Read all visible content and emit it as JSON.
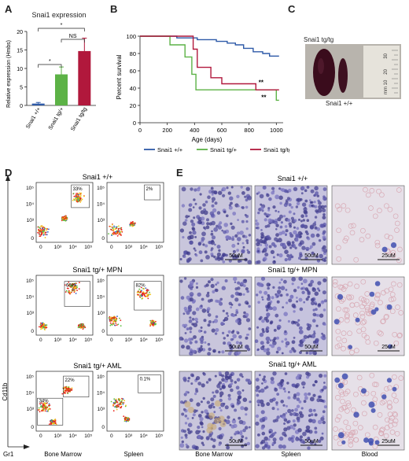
{
  "figure": {
    "panel_labels": [
      "A",
      "B",
      "C",
      "D",
      "E"
    ]
  },
  "panelA": {
    "title": "Snai1 expression",
    "ylabel": "Relative expression (Hmbs)",
    "sig_labels": [
      "*",
      "NS",
      "*"
    ]
  },
  "panelB": {
    "xlabel": "Age (days)",
    "ylabel": "Percent survival",
    "sig_labels": [
      "**",
      "**"
    ]
  },
  "panelC": {
    "label_top": "Snai1 tg/tg",
    "label_bottom": "Snai1 +/+",
    "ruler_marks": [
      "30",
      "20",
      "mm 10"
    ]
  },
  "panelD": {
    "rows": [
      {
        "title": "Snai1 +/+",
        "bm_pct": "33%",
        "sp_pct": "2%"
      },
      {
        "title": "Snai1 tg/+ MPN",
        "bm_pct": "66%",
        "sp_pct": "82%"
      },
      {
        "title": "Snai1 tg/+ AML",
        "bm_pct": "22%",
        "bm_pct2": "34%",
        "sp_pct": "0.1%"
      }
    ],
    "y_axis": "Cd11b",
    "x_axis": "Gr1",
    "col_labels": [
      "Bone Marrow",
      "Spleen"
    ],
    "tick_labels": [
      "0",
      "10³",
      "10⁴",
      "10⁵"
    ]
  },
  "panelE": {
    "rows": [
      {
        "title": "Snai1 +/+",
        "scales": [
          "50uM",
          "50uM",
          "25uM"
        ]
      },
      {
        "title": "Snai1 tg/+ MPN",
        "scales": [
          "50uM",
          "50uM",
          "25uM"
        ]
      },
      {
        "title": "Snai1 tg/+ AML",
        "scales": [
          "50uM",
          "50uM",
          "25uM"
        ]
      }
    ],
    "col_labels": [
      "Bone Marrow",
      "Spleen",
      "Blood"
    ]
  },
  "chart_data": [
    {
      "type": "bar",
      "title": "Snai1 expression",
      "ylabel": "Relative expression (Hmbs)",
      "categories": [
        "Snai1 +/+",
        "Snai1 tg/+",
        "Snai1 tg/tg"
      ],
      "values": [
        0.5,
        8.4,
        14.7
      ],
      "errors": [
        0.3,
        2.0,
        3.5
      ],
      "colors": [
        "#2e5aa8",
        "#5cb246",
        "#b1183c"
      ],
      "ylim": [
        0,
        20
      ],
      "yticks": [
        0,
        5,
        10,
        15,
        20
      ]
    },
    {
      "type": "line",
      "xlabel": "Age (days)",
      "ylabel": "Percent survival",
      "xlim": [
        0,
        1050
      ],
      "ylim": [
        0,
        100
      ],
      "xticks": [
        0,
        200,
        400,
        600,
        800,
        1000
      ],
      "yticks": [
        0,
        20,
        40,
        60,
        80,
        100
      ],
      "series": [
        {
          "name": "Snai1 +/+",
          "color": "#2e5aa8",
          "points": [
            [
              0,
              100
            ],
            [
              270,
              100
            ],
            [
              270,
              98
            ],
            [
              420,
              98
            ],
            [
              420,
              96
            ],
            [
              560,
              96
            ],
            [
              560,
              94
            ],
            [
              640,
              94
            ],
            [
              640,
              92
            ],
            [
              700,
              92
            ],
            [
              700,
              90
            ],
            [
              760,
              90
            ],
            [
              760,
              86
            ],
            [
              830,
              86
            ],
            [
              830,
              82
            ],
            [
              900,
              82
            ],
            [
              900,
              80
            ],
            [
              950,
              80
            ],
            [
              950,
              77
            ],
            [
              1020,
              77
            ]
          ]
        },
        {
          "name": "Snai1 tg/+",
          "color": "#5cb246",
          "points": [
            [
              0,
              100
            ],
            [
              220,
              100
            ],
            [
              220,
              90
            ],
            [
              330,
              90
            ],
            [
              330,
              76
            ],
            [
              380,
              76
            ],
            [
              380,
              56
            ],
            [
              410,
              56
            ],
            [
              410,
              38
            ],
            [
              1000,
              38
            ],
            [
              1000,
              26
            ],
            [
              1020,
              26
            ]
          ]
        },
        {
          "name": "Snai1 tg/tg",
          "color": "#b1183c",
          "points": [
            [
              0,
              100
            ],
            [
              390,
              100
            ],
            [
              390,
              85
            ],
            [
              420,
              85
            ],
            [
              420,
              64
            ],
            [
              520,
              64
            ],
            [
              520,
              52
            ],
            [
              600,
              52
            ],
            [
              600,
              45
            ],
            [
              850,
              45
            ],
            [
              850,
              38
            ],
            [
              1020,
              38
            ]
          ]
        }
      ]
    }
  ]
}
